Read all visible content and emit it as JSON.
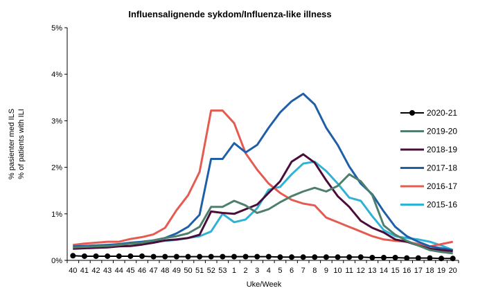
{
  "chart_data": {
    "type": "line",
    "title": "Influensalignende sykdom/Influenza-like illness",
    "xlabel": "Uke/Week",
    "ylabel_line1": "% pasienter med ILS",
    "ylabel_line2": "% of patients with ILI",
    "ylim": [
      0,
      5
    ],
    "yticks": [
      0,
      1,
      2,
      3,
      4,
      5
    ],
    "ytick_labels": [
      "0%",
      "1%",
      "2%",
      "3%",
      "4%",
      "5%"
    ],
    "categories": [
      "40",
      "41",
      "42",
      "43",
      "44",
      "45",
      "46",
      "47",
      "48",
      "49",
      "50",
      "51",
      "52",
      "53",
      "1",
      "2",
      "3",
      "4",
      "5",
      "6",
      "7",
      "8",
      "9",
      "10",
      "11",
      "12",
      "13",
      "14",
      "15",
      "16",
      "17",
      "18",
      "19",
      "20"
    ],
    "legend_position": "right",
    "grid": false,
    "series": [
      {
        "name": "2020-21",
        "color": "#000000",
        "marker": "circle",
        "values": [
          0.1,
          0.09,
          0.09,
          0.09,
          0.09,
          0.09,
          0.09,
          0.08,
          0.08,
          0.08,
          0.08,
          0.08,
          0.08,
          0.08,
          0.08,
          0.08,
          0.08,
          0.08,
          0.07,
          0.07,
          0.07,
          0.07,
          0.07,
          0.07,
          0.07,
          0.07,
          0.06,
          0.06,
          0.06,
          0.05,
          0.05,
          0.05,
          0.04,
          0.04
        ]
      },
      {
        "name": "2019-20",
        "color": "#4E7E6C",
        "values": [
          0.28,
          0.29,
          0.3,
          0.31,
          0.33,
          0.36,
          0.38,
          0.43,
          0.48,
          0.52,
          0.58,
          0.72,
          1.15,
          1.15,
          1.28,
          1.18,
          1.02,
          1.1,
          1.25,
          1.38,
          1.48,
          1.56,
          1.48,
          1.6,
          1.85,
          1.7,
          1.4,
          0.75,
          0.55,
          0.42,
          0.32,
          0.22,
          0.18,
          0.15
        ]
      },
      {
        "name": "2018-19",
        "color": "#4A0D3A",
        "values": [
          0.25,
          0.26,
          0.27,
          0.28,
          0.3,
          0.31,
          0.34,
          0.38,
          0.43,
          0.45,
          0.48,
          0.55,
          1.05,
          1.02,
          1.0,
          1.1,
          1.2,
          1.45,
          1.7,
          2.12,
          2.28,
          2.1,
          1.72,
          1.38,
          1.15,
          0.85,
          0.7,
          0.6,
          0.45,
          0.4,
          0.32,
          0.25,
          0.22,
          0.2
        ]
      },
      {
        "name": "2017-18",
        "color": "#1F5FA8",
        "values": [
          0.3,
          0.31,
          0.32,
          0.33,
          0.35,
          0.38,
          0.4,
          0.43,
          0.48,
          0.58,
          0.72,
          0.98,
          2.18,
          2.18,
          2.52,
          2.32,
          2.48,
          2.85,
          3.18,
          3.42,
          3.58,
          3.35,
          2.85,
          2.48,
          2.02,
          1.65,
          1.42,
          1.05,
          0.72,
          0.52,
          0.4,
          0.3,
          0.26,
          0.22
        ]
      },
      {
        "name": "2016-17",
        "color": "#E55B52",
        "values": [
          0.33,
          0.36,
          0.38,
          0.4,
          0.4,
          0.46,
          0.5,
          0.56,
          0.7,
          1.08,
          1.4,
          1.9,
          3.22,
          3.22,
          2.95,
          2.3,
          1.95,
          1.65,
          1.45,
          1.3,
          1.22,
          1.18,
          0.92,
          0.82,
          0.72,
          0.62,
          0.52,
          0.45,
          0.42,
          0.4,
          0.35,
          0.3,
          0.35,
          0.4
        ]
      },
      {
        "name": "2015-16",
        "color": "#2FB3D4",
        "values": [
          0.3,
          0.31,
          0.32,
          0.33,
          0.34,
          0.36,
          0.38,
          0.4,
          0.42,
          0.44,
          0.48,
          0.52,
          0.62,
          1.0,
          0.82,
          0.88,
          1.12,
          1.52,
          1.58,
          1.85,
          2.08,
          2.12,
          1.92,
          1.65,
          1.35,
          1.28,
          0.95,
          0.65,
          0.52,
          0.48,
          0.45,
          0.4,
          0.32,
          0.22
        ]
      }
    ]
  }
}
